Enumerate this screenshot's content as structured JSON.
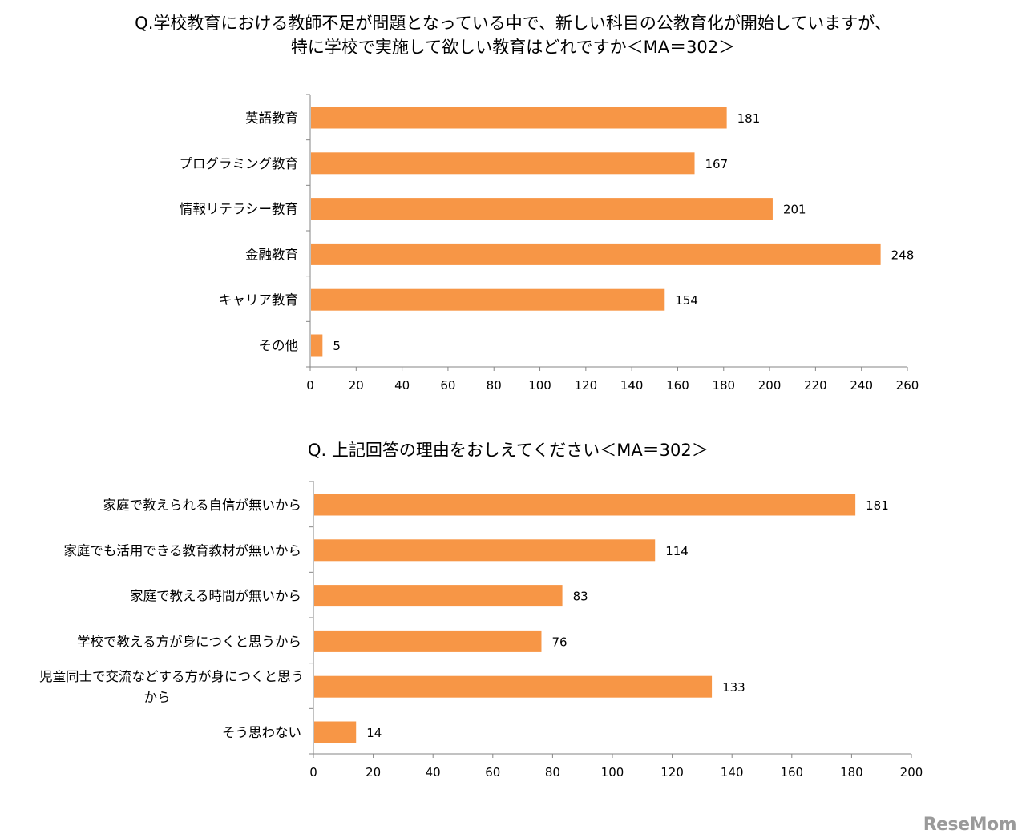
{
  "chart_data": [
    {
      "type": "bar",
      "orientation": "horizontal",
      "title": [
        "Q.学校教育における教師不足が問題となっている中で、新しい科目の公教育化が開始していますが、",
        "特に学校で実施して欲しい教育はどれですか＜MA＝302＞"
      ],
      "categories": [
        "英語教育",
        "プログラミング教育",
        "情報リテラシー教育",
        "金融教育",
        "キャリア教育",
        "その他"
      ],
      "values": [
        181,
        167,
        201,
        248,
        154,
        5
      ],
      "xlim": [
        0,
        260
      ],
      "ticks": [
        "0",
        "20",
        "40",
        "60",
        "80",
        "100",
        "120",
        "140",
        "160",
        "180",
        "200",
        "220",
        "240",
        "260"
      ],
      "bar_color": "#F79646",
      "grid": false
    },
    {
      "type": "bar",
      "orientation": "horizontal",
      "title": "Q. 上記回答の理由をおしえてください＜MA＝302＞",
      "categories": [
        "家庭で教えられる自信が無いから",
        "家庭でも活用できる教育教材が無いから",
        "家庭で教える時間が無いから",
        "学校で教える方が身につくと思うから",
        [
          "児童同士で交流などする方が身につくと思う",
          "から"
        ],
        "そう思わない"
      ],
      "values": [
        181,
        114,
        83,
        76,
        133,
        14
      ],
      "xlim": [
        0,
        200
      ],
      "ticks": [
        "0",
        "20",
        "40",
        "60",
        "80",
        "100",
        "120",
        "140",
        "160",
        "180",
        "200"
      ],
      "bar_color": "#F79646",
      "grid": false
    }
  ],
  "watermark": "ReseMom"
}
